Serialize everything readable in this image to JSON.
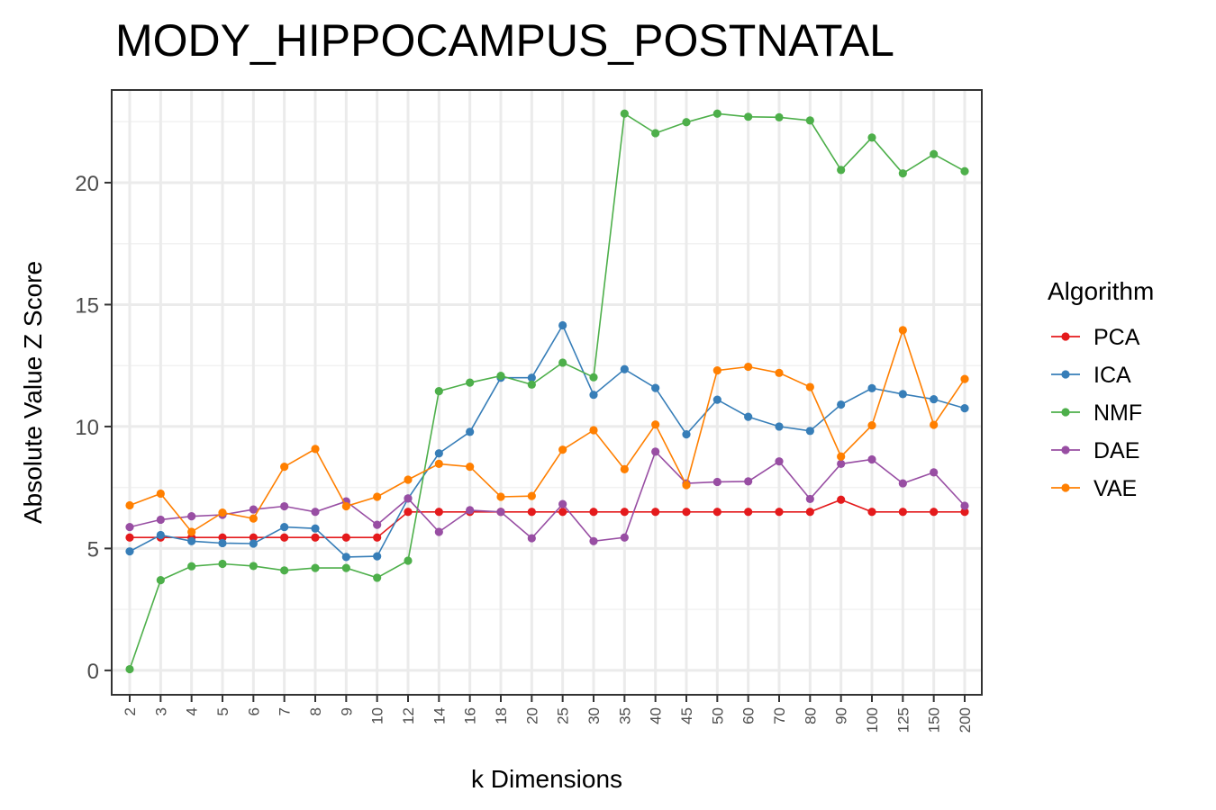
{
  "chart_data": {
    "type": "line",
    "title": "MODY_HIPPOCAMPUS_POSTNATAL",
    "xlabel": "k Dimensions",
    "ylabel": "Absolute Value Z Score",
    "x": [
      "2",
      "3",
      "4",
      "5",
      "6",
      "7",
      "8",
      "9",
      "10",
      "12",
      "14",
      "16",
      "18",
      "20",
      "25",
      "30",
      "35",
      "40",
      "45",
      "50",
      "60",
      "70",
      "80",
      "90",
      "100",
      "125",
      "150",
      "200"
    ],
    "ylim": [
      -1,
      23.8
    ],
    "yticks": [
      0,
      5,
      10,
      15,
      20
    ],
    "grid": true,
    "legend": {
      "title": "Algorithm",
      "placement": "right"
    },
    "series": [
      {
        "name": "PCA",
        "color": "#e41a1c",
        "values": [
          5.45,
          5.45,
          5.45,
          5.45,
          5.45,
          5.45,
          5.45,
          5.45,
          5.45,
          6.5,
          6.5,
          6.5,
          6.5,
          6.5,
          6.5,
          6.5,
          6.5,
          6.5,
          6.5,
          6.5,
          6.5,
          6.5,
          6.5,
          7.0,
          6.5,
          6.5,
          6.5,
          6.5
        ]
      },
      {
        "name": "ICA",
        "color": "#377eb8",
        "values": [
          4.88,
          5.55,
          5.3,
          5.22,
          5.2,
          5.88,
          5.82,
          4.65,
          4.68,
          7.05,
          8.9,
          9.78,
          12.0,
          12.0,
          14.15,
          11.3,
          12.35,
          11.58,
          9.68,
          11.1,
          10.4,
          10.0,
          9.82,
          10.9,
          11.57,
          11.33,
          11.12,
          10.75
        ]
      },
      {
        "name": "NMF",
        "color": "#4daf4a",
        "values": [
          0.05,
          3.7,
          4.27,
          4.37,
          4.28,
          4.1,
          4.2,
          4.2,
          3.8,
          4.5,
          11.45,
          11.8,
          12.08,
          11.72,
          12.62,
          12.02,
          22.83,
          22.03,
          22.48,
          22.83,
          22.7,
          22.68,
          22.55,
          20.52,
          21.85,
          20.38,
          21.17,
          20.47
        ]
      },
      {
        "name": "DAE",
        "color": "#984ea3",
        "values": [
          5.88,
          6.18,
          6.32,
          6.38,
          6.6,
          6.73,
          6.5,
          6.93,
          5.97,
          7.05,
          5.68,
          6.57,
          6.5,
          5.42,
          6.82,
          5.3,
          5.45,
          8.97,
          7.67,
          7.73,
          7.75,
          8.57,
          7.03,
          8.47,
          8.65,
          7.67,
          8.12,
          6.75
        ]
      },
      {
        "name": "VAE",
        "color": "#ff7f00",
        "values": [
          6.77,
          7.25,
          5.68,
          6.47,
          6.23,
          8.35,
          9.08,
          6.73,
          7.12,
          7.82,
          8.47,
          8.35,
          7.12,
          7.15,
          9.05,
          9.85,
          8.25,
          10.08,
          7.6,
          12.3,
          12.45,
          12.2,
          11.62,
          8.77,
          10.05,
          13.95,
          10.07,
          11.95
        ]
      }
    ]
  }
}
